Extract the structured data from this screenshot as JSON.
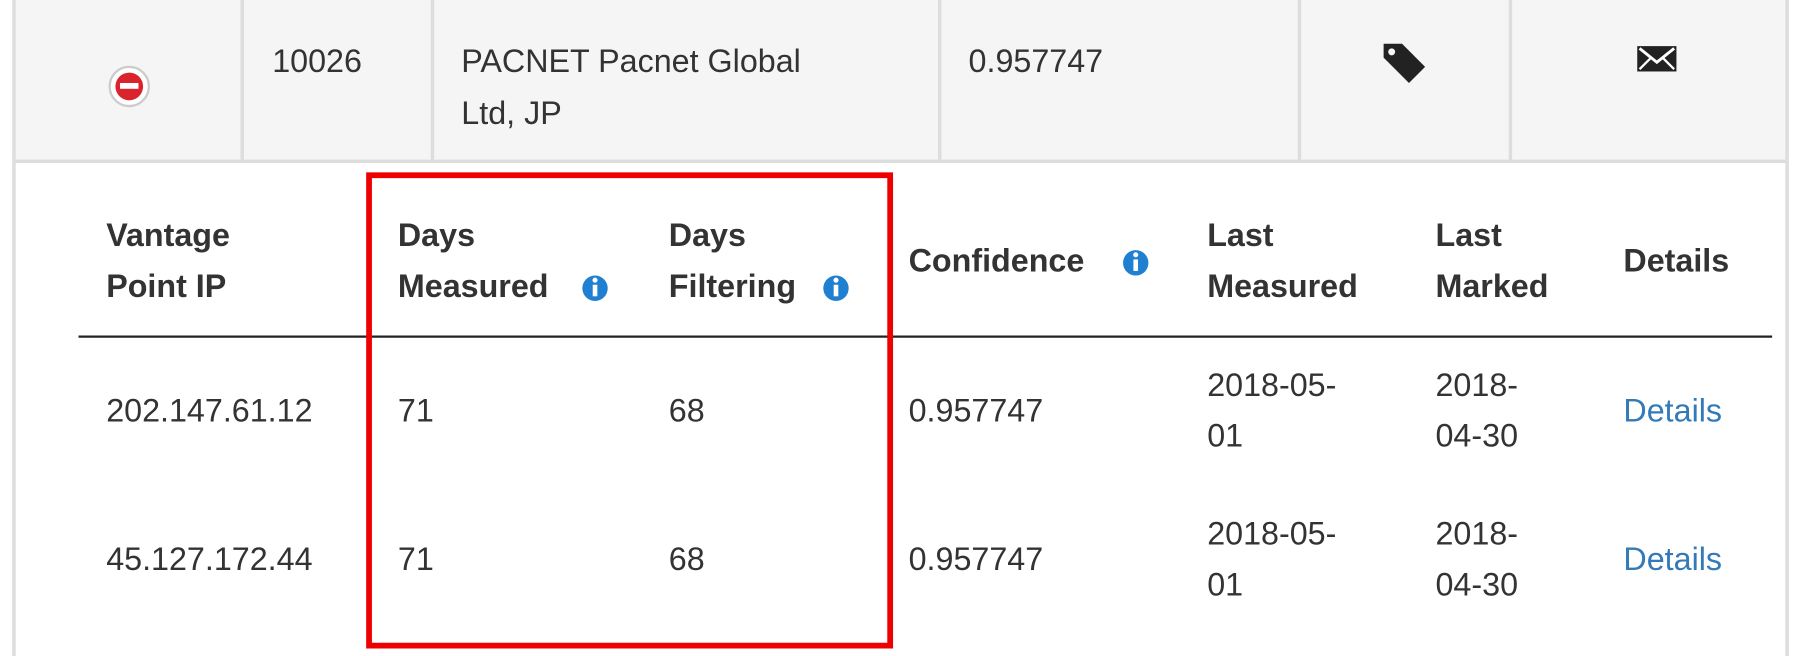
{
  "summary_row": {
    "id": "10026",
    "name_lines": [
      "PACNET Pacnet Global",
      "Ltd, JP"
    ],
    "confidence": "0.957747"
  },
  "detail_table": {
    "headers": [
      [
        "Vantage",
        "Point IP"
      ],
      [
        "Days",
        "Measured"
      ],
      [
        "Days",
        "Filtering"
      ],
      [
        "Confidence"
      ],
      [
        "Last",
        "Measured"
      ],
      [
        "Last",
        "Marked"
      ],
      [
        "Details"
      ]
    ],
    "rows": [
      [
        [
          "202.147.61.12"
        ],
        [
          "71"
        ],
        [
          "68"
        ],
        [
          "0.957747"
        ],
        [
          "2018-05-",
          "01"
        ],
        [
          "2018-",
          "04-30"
        ],
        [
          "Details"
        ]
      ],
      [
        [
          "45.127.172.44"
        ],
        [
          "71"
        ],
        [
          "68"
        ],
        [
          "0.957747"
        ],
        [
          "2018-05-",
          "01"
        ],
        [
          "2018-",
          "04-30"
        ],
        [
          "Details"
        ]
      ]
    ]
  }
}
